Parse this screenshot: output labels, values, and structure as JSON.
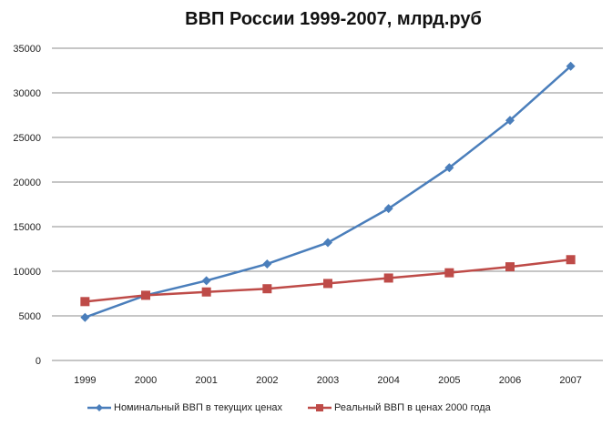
{
  "chart_data": {
    "type": "line",
    "title": "ВВП России 1999-2007, млрд.руб",
    "xlabel": "",
    "ylabel": "",
    "categories": [
      "1999",
      "2000",
      "2001",
      "2002",
      "2003",
      "2004",
      "2005",
      "2006",
      "2007"
    ],
    "ylim": [
      0,
      35000
    ],
    "yticks": [
      0,
      5000,
      10000,
      15000,
      20000,
      25000,
      30000,
      35000
    ],
    "grid": true,
    "legend_position": "bottom",
    "series": [
      {
        "name": "Номинальный ВВП в текущих ценах",
        "color": "#4a7ebb",
        "marker": "diamond",
        "values": [
          4823,
          7306,
          8944,
          10819,
          13208,
          17027,
          21610,
          26917,
          32988
        ]
      },
      {
        "name": "Реальный ВВП в ценах  2000 года",
        "color": "#be4b48",
        "marker": "square",
        "values": [
          6600,
          7306,
          7680,
          8040,
          8630,
          9240,
          9830,
          10500,
          11300
        ]
      }
    ]
  }
}
